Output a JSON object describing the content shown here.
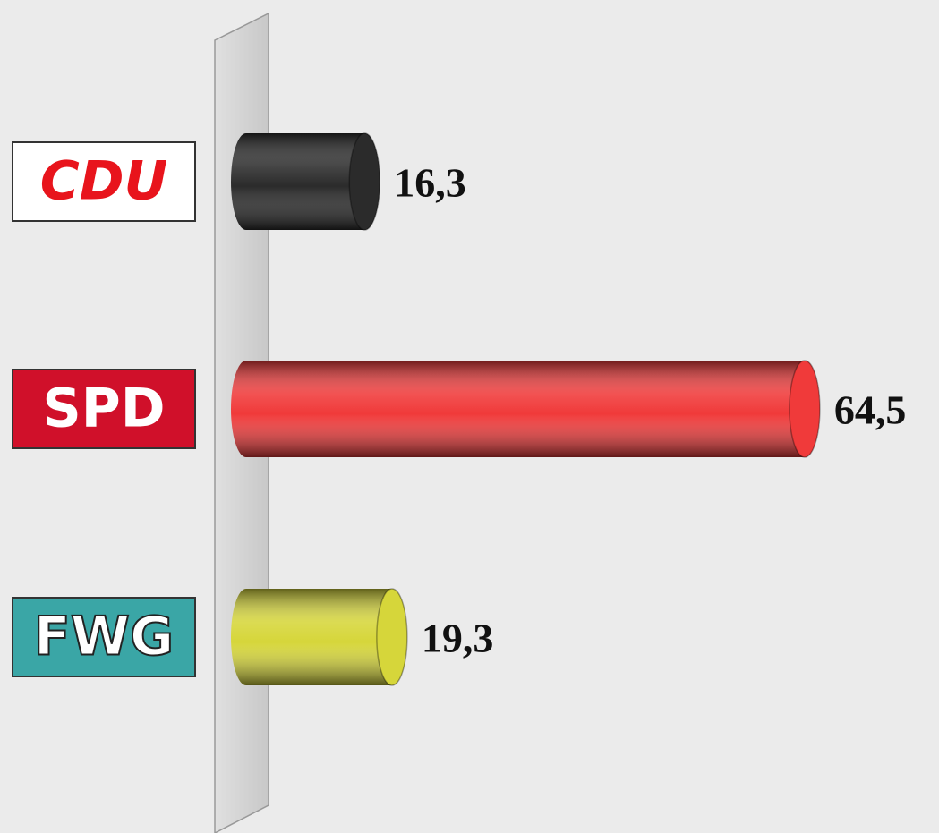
{
  "chart_data": {
    "type": "bar",
    "orientation": "horizontal",
    "categories": [
      "CDU",
      "SPD",
      "FWG"
    ],
    "values": [
      16.3,
      64.5,
      19.3
    ],
    "value_labels": [
      "16,3",
      "64,5",
      "19,3"
    ],
    "colors": [
      "#2b2b2b",
      "#f03a3a",
      "#d6d63a"
    ]
  }
}
